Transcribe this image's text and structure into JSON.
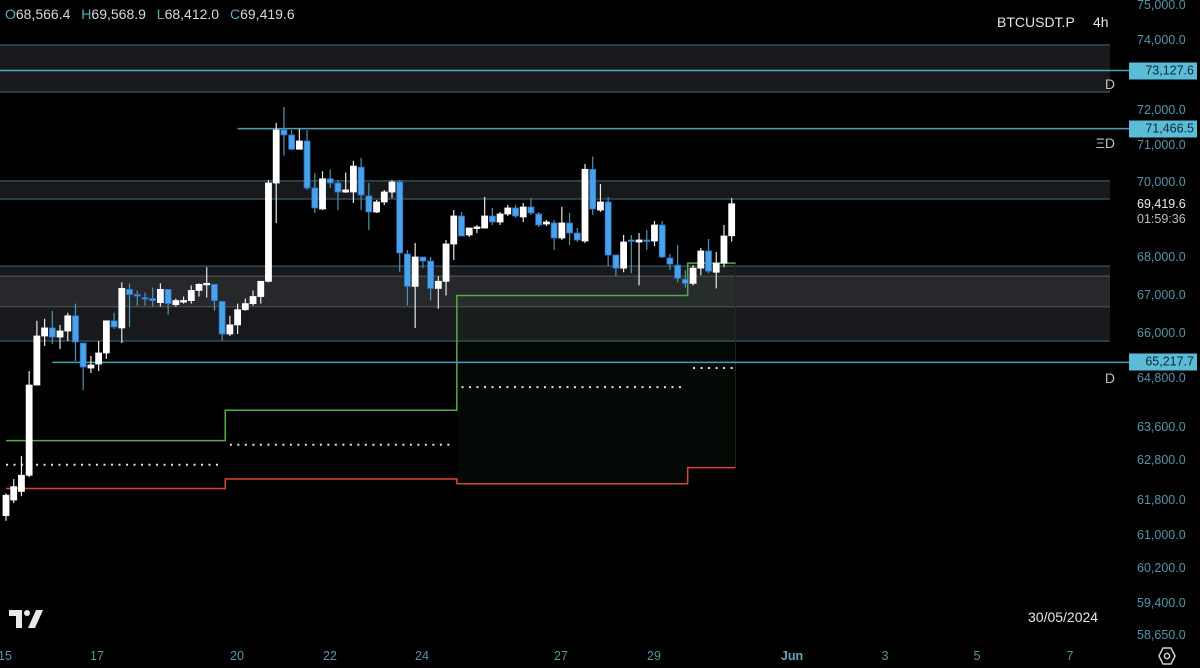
{
  "header": {
    "ohlc": [
      {
        "key": "O",
        "value": "68,566.4"
      },
      {
        "key": "H",
        "value": "69,568.9"
      },
      {
        "key": "L",
        "value": "68,412.0"
      },
      {
        "key": "C",
        "value": "69,419.6"
      }
    ],
    "symbol": "BTCUSDT.P",
    "timeframe": "4h"
  },
  "footer": {
    "date_label": "30/05/2024",
    "logo": "TV",
    "settings_icon": "settings-hex-icon"
  },
  "colors": {
    "up": "#ffffff",
    "down": "#4aa3e6",
    "level_line": "#4a9fb5",
    "zone_fill": "#1a1c1f",
    "green_line": "#58a84a",
    "red_line": "#d8463a",
    "price_label_bg": "#5bbcd8",
    "axis_text": "#4e97a8"
  },
  "chart_data": {
    "type": "candlestick",
    "symbol": "BTCUSDT.P",
    "interval": "4h",
    "y_ticks": [
      "75,000.0",
      "74,000.0",
      "72,000.0",
      "71,000.0",
      "70,000.0",
      "68,000.0",
      "67,000.0",
      "66,000.0",
      "64,800.0",
      "63,600.0",
      "62,800.0",
      "61,800.0",
      "61,000.0",
      "60,200.0",
      "59,400.0",
      "58,650.0"
    ],
    "x_ticks": [
      {
        "label": "15"
      },
      {
        "label": "17"
      },
      {
        "label": "20"
      },
      {
        "label": "22"
      },
      {
        "label": "24"
      },
      {
        "label": "27"
      },
      {
        "label": "29"
      },
      {
        "label": "Jun",
        "month": true
      },
      {
        "label": "3"
      },
      {
        "label": "5"
      },
      {
        "label": "7"
      }
    ],
    "candles_ohlc": [
      [
        61443,
        61967,
        61324,
        61919
      ],
      [
        61800,
        62324,
        61729,
        62134
      ],
      [
        62015,
        62900,
        61896,
        62419
      ],
      [
        62419,
        64987,
        62371,
        64627
      ],
      [
        64627,
        66320,
        64627,
        65920
      ],
      [
        65920,
        66373,
        65653,
        66133
      ],
      [
        66133,
        66587,
        65707,
        65893
      ],
      [
        65893,
        66213,
        65573,
        66053
      ],
      [
        66053,
        66533,
        65787,
        66453
      ],
      [
        66453,
        66773,
        65253,
        65760
      ],
      [
        65733,
        65733,
        64504,
        65093
      ],
      [
        65067,
        65387,
        64933,
        65147
      ],
      [
        65173,
        65787,
        64987,
        65467
      ],
      [
        65467,
        66320,
        65307,
        66320
      ],
      [
        66320,
        66533,
        66107,
        66160
      ],
      [
        66133,
        67333,
        65733,
        67173
      ],
      [
        67147,
        67307,
        66160,
        67013
      ],
      [
        67013,
        67120,
        66720,
        66987
      ],
      [
        66933,
        67067,
        66720,
        66907
      ],
      [
        66907,
        67200,
        66693,
        66853
      ],
      [
        66800,
        67307,
        66693,
        67147
      ],
      [
        67147,
        67147,
        66480,
        66773
      ],
      [
        66747,
        66907,
        66693,
        66853
      ],
      [
        66827,
        66960,
        66773,
        66853
      ],
      [
        66853,
        67253,
        66773,
        67120
      ],
      [
        67120,
        67307,
        66960,
        67280
      ],
      [
        67280,
        67733,
        66933,
        67307
      ],
      [
        67280,
        67280,
        66587,
        66853
      ],
      [
        66827,
        66853,
        65787,
        65973
      ],
      [
        65973,
        66453,
        65920,
        66213
      ],
      [
        66213,
        66773,
        65973,
        66613
      ],
      [
        66613,
        66907,
        66587,
        66773
      ],
      [
        66773,
        67120,
        66720,
        66960
      ],
      [
        66960,
        67360,
        66773,
        67360
      ],
      [
        67360,
        70050,
        67333,
        69973
      ],
      [
        69973,
        71629,
        68907,
        71429
      ],
      [
        71429,
        72086,
        70714,
        71286
      ],
      [
        71286,
        71429,
        70857,
        70886
      ],
      [
        70886,
        71457,
        70886,
        71114
      ],
      [
        71114,
        71429,
        69787,
        69840
      ],
      [
        69840,
        70230,
        69173,
        69307
      ],
      [
        69280,
        70290,
        69253,
        70086
      ],
      [
        70086,
        70343,
        69840,
        69973
      ],
      [
        69973,
        70050,
        69253,
        69733
      ],
      [
        69733,
        70257,
        69707,
        69787
      ],
      [
        69733,
        70571,
        69440,
        70429
      ],
      [
        70400,
        70657,
        69253,
        69653
      ],
      [
        69627,
        69973,
        68720,
        69200
      ],
      [
        69200,
        69520,
        69173,
        69467
      ],
      [
        69467,
        69787,
        69387,
        69733
      ],
      [
        69733,
        70050,
        69573,
        70000
      ],
      [
        70000,
        70050,
        67600,
        68107
      ],
      [
        68080,
        68187,
        66720,
        67227
      ],
      [
        67227,
        68373,
        66133,
        68000
      ],
      [
        68000,
        68000,
        67707,
        67893
      ],
      [
        67893,
        68000,
        66853,
        67173
      ],
      [
        67173,
        67493,
        66640,
        67360
      ],
      [
        67360,
        68453,
        66987,
        68347
      ],
      [
        68347,
        69253,
        67920,
        69093
      ],
      [
        69093,
        69200,
        68560,
        68560
      ],
      [
        68587,
        68773,
        68533,
        68773
      ],
      [
        68773,
        68853,
        68640,
        68800
      ],
      [
        68773,
        69600,
        68773,
        69093
      ],
      [
        69093,
        69307,
        68853,
        68933
      ],
      [
        68933,
        69200,
        68853,
        69147
      ],
      [
        69147,
        69387,
        69093,
        69307
      ],
      [
        69307,
        69387,
        69040,
        69093
      ],
      [
        69067,
        69440,
        68933,
        69333
      ],
      [
        69333,
        69573,
        69120,
        69173
      ],
      [
        69147,
        69200,
        68800,
        68853
      ],
      [
        68880,
        68987,
        68827,
        68933
      ],
      [
        68907,
        68987,
        68187,
        68507
      ],
      [
        68507,
        69333,
        68453,
        68907
      ],
      [
        68907,
        69173,
        68320,
        68640
      ],
      [
        68640,
        68773,
        68400,
        68453
      ],
      [
        68427,
        70486,
        68373,
        70343
      ],
      [
        70343,
        70686,
        69120,
        69280
      ],
      [
        69253,
        69947,
        69200,
        69467
      ],
      [
        69467,
        69600,
        67760,
        68053
      ],
      [
        68053,
        68053,
        67493,
        67707
      ],
      [
        67707,
        68587,
        67600,
        68400
      ],
      [
        68453,
        68587,
        67573,
        68440
      ],
      [
        68400,
        68640,
        67253,
        68453
      ],
      [
        68453,
        68720,
        68187,
        68427
      ],
      [
        68427,
        68960,
        68293,
        68853
      ],
      [
        68853,
        68960,
        67973,
        68000
      ],
      [
        67973,
        68080,
        67653,
        67813
      ],
      [
        67787,
        68320,
        67333,
        67440
      ],
      [
        67413,
        67653,
        67200,
        67307
      ],
      [
        67307,
        67787,
        67253,
        67707
      ],
      [
        67707,
        68240,
        67520,
        68160
      ],
      [
        68160,
        68480,
        67573,
        67627
      ],
      [
        67600,
        68133,
        67173,
        67840
      ],
      [
        67840,
        68853,
        67733,
        68560
      ],
      [
        68566.4,
        69568.9,
        68412.0,
        69419.6
      ]
    ],
    "last_price": "69,419.6",
    "countdown": "01:59:36",
    "levels": [
      {
        "price": 73127.6,
        "label": "73,127.6",
        "from_candle": 0
      },
      {
        "price": 71466.5,
        "label": "71,466.5",
        "from_candle": 30
      },
      {
        "price": 65217.7,
        "label": "65,217.7",
        "from_candle": 6
      }
    ],
    "zones": [
      {
        "top": 73857,
        "bottom": 73127.6,
        "tag": ""
      },
      {
        "top": 73127.6,
        "bottom": 72514,
        "tag": "D"
      },
      {
        "top": 70030,
        "bottom": 69547,
        "tag": ""
      },
      {
        "top": 67760,
        "bottom": 65787,
        "inner_top": 67493,
        "inner_bottom": 66693,
        "tag": ""
      }
    ],
    "zone_tags": [
      {
        "text": "D",
        "price": 72750
      },
      {
        "text": "ΞD",
        "price": 71050
      },
      {
        "text": "D",
        "price": 64790
      }
    ],
    "green_step": [
      {
        "from_candle": 0,
        "to_candle": 28.4,
        "value": 63269
      },
      {
        "from_candle": 28.4,
        "to_candle": 58.4,
        "value": 64010
      },
      {
        "from_candle": 58.4,
        "to_candle": 88.3,
        "value": 66987
      },
      {
        "from_candle": 88.3,
        "to_candle": 94.5,
        "value": 67840
      }
    ],
    "red_step": [
      {
        "from_candle": 0,
        "to_candle": 28.4,
        "value": 62086
      },
      {
        "from_candle": 28.4,
        "to_candle": 58.4,
        "value": 62324
      },
      {
        "from_candle": 58.4,
        "to_candle": 88.3,
        "value": 62205
      },
      {
        "from_candle": 88.3,
        "to_candle": 94.5,
        "value": 62610
      }
    ],
    "dotted_levels": [
      {
        "from_candle": 0,
        "to_candle": 28,
        "value": 62681
      },
      {
        "from_candle": 29,
        "to_candle": 58,
        "value": 63170
      },
      {
        "from_candle": 59,
        "to_candle": 88,
        "value": 64578
      },
      {
        "from_candle": 89,
        "to_candle": 94.5,
        "value": 65067
      }
    ]
  }
}
